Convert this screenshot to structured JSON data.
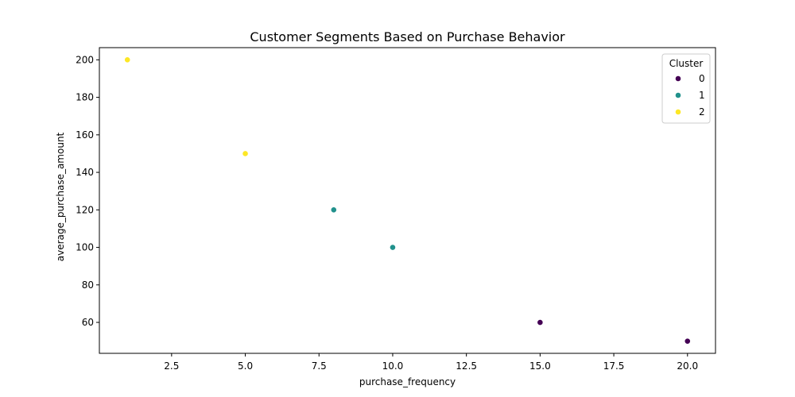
{
  "chart_data": {
    "type": "scatter",
    "title": "Customer Segments Based on Purchase Behavior",
    "xlabel": "purchase_frequency",
    "ylabel": "average_purchase_amount",
    "xlim": [
      0.05,
      20.95
    ],
    "ylim": [
      43.5,
      206.5
    ],
    "xticks": [
      2.5,
      5.0,
      7.5,
      10.0,
      12.5,
      15.0,
      17.5,
      20.0
    ],
    "xtick_labels": [
      "2.5",
      "5.0",
      "7.5",
      "10.0",
      "12.5",
      "15.0",
      "17.5",
      "20.0"
    ],
    "yticks": [
      60,
      80,
      100,
      120,
      140,
      160,
      180,
      200
    ],
    "ytick_labels": [
      "60",
      "80",
      "100",
      "120",
      "140",
      "160",
      "180",
      "200"
    ],
    "grid": false,
    "legend": {
      "title": "Cluster",
      "placement": "top-right",
      "entries": [
        "0",
        "1",
        "2"
      ]
    },
    "series": [
      {
        "name": "0",
        "color": "#440154",
        "x": [
          15,
          20
        ],
        "y": [
          60,
          50
        ]
      },
      {
        "name": "1",
        "color": "#21918c",
        "x": [
          8,
          10
        ],
        "y": [
          120,
          100
        ]
      },
      {
        "name": "2",
        "color": "#fde725",
        "x": [
          1,
          5
        ],
        "y": [
          200,
          150
        ]
      }
    ]
  }
}
